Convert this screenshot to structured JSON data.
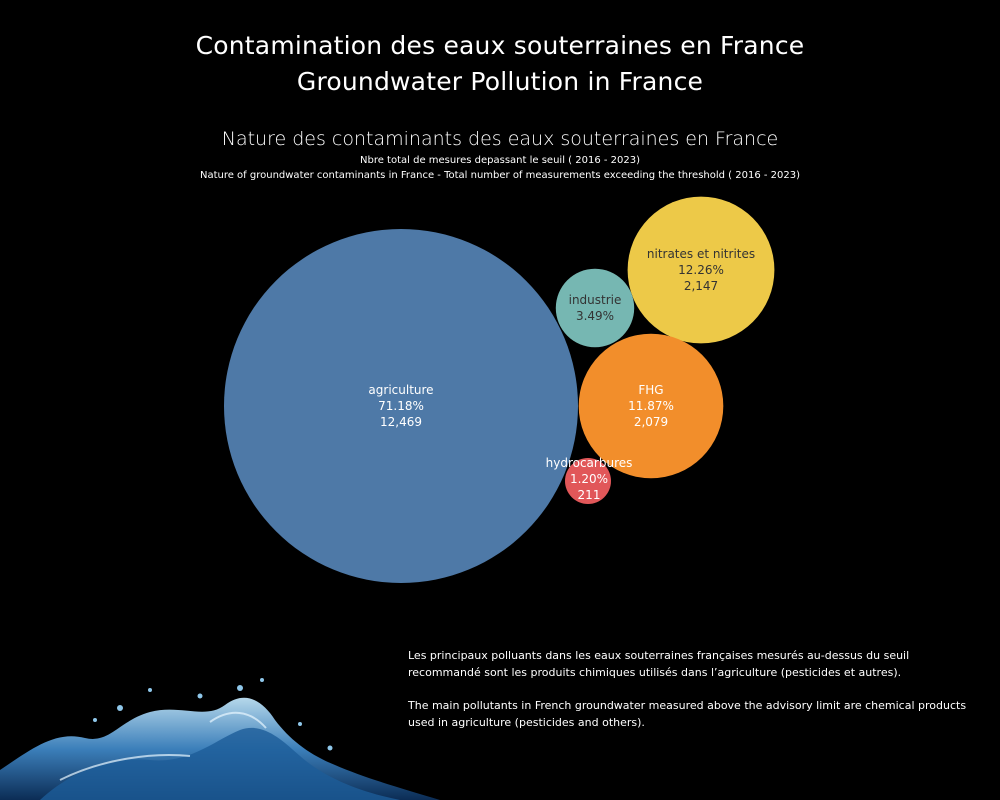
{
  "title": {
    "line1": "Contamination des eaux souterraines en France",
    "line2": "Groundwater Pollution in France"
  },
  "chart_data": {
    "type": "bubble",
    "title": "Nature des contaminants des eaux souterraines en France",
    "subtitle1": "Nbre total de mesures depassant le seuil ( 2016 - 2023)",
    "subtitle2": "Nature of groundwater contaminants in France - Total number of measurements exceeding the threshold ( 2016 - 2023)",
    "bubbles": [
      {
        "label": "agriculture",
        "percent": "71.18%",
        "count": "12,469",
        "value": 12469,
        "color": "#4e79a7",
        "text_color": "#ffffff"
      },
      {
        "label": "nitrates et nitrites",
        "percent": "12.26%",
        "count": "2,147",
        "value": 2147,
        "color": "#edc948",
        "text_color": "#333333"
      },
      {
        "label": "FHG",
        "percent": "11.87%",
        "count": "2,079",
        "value": 2079,
        "color": "#f28e2b",
        "text_color": "#ffffff"
      },
      {
        "label": "industrie",
        "percent": "3.49%",
        "count": "",
        "value": 611,
        "color": "#76b7b2",
        "text_color": "#333333"
      },
      {
        "label": "hydrocarbures",
        "percent": "1.20%",
        "count": "211",
        "value": 211,
        "color": "#e15759",
        "text_color": "#ffffff"
      }
    ]
  },
  "notes": {
    "fr": "Les principaux polluants dans les eaux souterraines françaises mesurés au-dessus du seuil recommandé sont les produits chimiques utilisés dans l’agriculture (pesticides et autres).",
    "en": "The main pollutants in French groundwater measured above the advisory limit are chemical products used in agriculture (pesticides and others)."
  },
  "colors": {
    "background": "#000000",
    "text": "#ffffff"
  }
}
